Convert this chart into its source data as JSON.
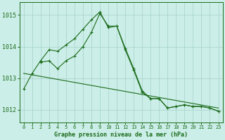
{
  "title": "Graphe pression niveau de la mer (hPa)",
  "background_color": "#cceee8",
  "grid_color": "#aad4ce",
  "line_color": "#1a6b1a",
  "xlim": [
    -0.5,
    23.5
  ],
  "ylim": [
    1011.6,
    1015.4
  ],
  "xticks": [
    0,
    1,
    2,
    3,
    4,
    5,
    6,
    7,
    8,
    9,
    10,
    11,
    12,
    13,
    14,
    15,
    16,
    17,
    18,
    19,
    20,
    21,
    22,
    23
  ],
  "yticks": [
    1012,
    1013,
    1014,
    1015
  ],
  "series": [
    {
      "x": [
        0,
        1,
        2,
        3,
        4,
        5,
        6,
        7,
        8,
        9,
        10,
        11,
        12,
        13,
        14,
        15,
        16,
        17,
        18,
        19,
        20,
        21,
        22,
        23
      ],
      "y": [
        1012.65,
        1013.15,
        1013.55,
        1013.9,
        1013.85,
        1014.05,
        1014.25,
        1014.55,
        1014.85,
        1015.1,
        1014.6,
        1014.65,
        1013.9,
        1013.25,
        1012.55,
        1012.35,
        1012.35,
        1012.05,
        1012.1,
        1012.15,
        1012.1,
        1012.1,
        1012.05,
        1011.95
      ],
      "marker": true
    },
    {
      "x": [
        2,
        3,
        4,
        5,
        6,
        7,
        8,
        9,
        10,
        11,
        12,
        13,
        14,
        15,
        16,
        17,
        18,
        19,
        20,
        21,
        22,
        23
      ],
      "y": [
        1013.5,
        1013.55,
        1013.3,
        1013.55,
        1013.7,
        1014.0,
        1014.45,
        1015.05,
        1014.65,
        1014.65,
        1013.95,
        1013.3,
        1012.6,
        1012.35,
        1012.35,
        1012.05,
        1012.1,
        1012.15,
        1012.1,
        1012.1,
        1012.05,
        1011.95
      ],
      "marker": true
    },
    {
      "x": [
        0,
        23
      ],
      "y": [
        1013.15,
        1012.05
      ],
      "marker": false
    }
  ]
}
